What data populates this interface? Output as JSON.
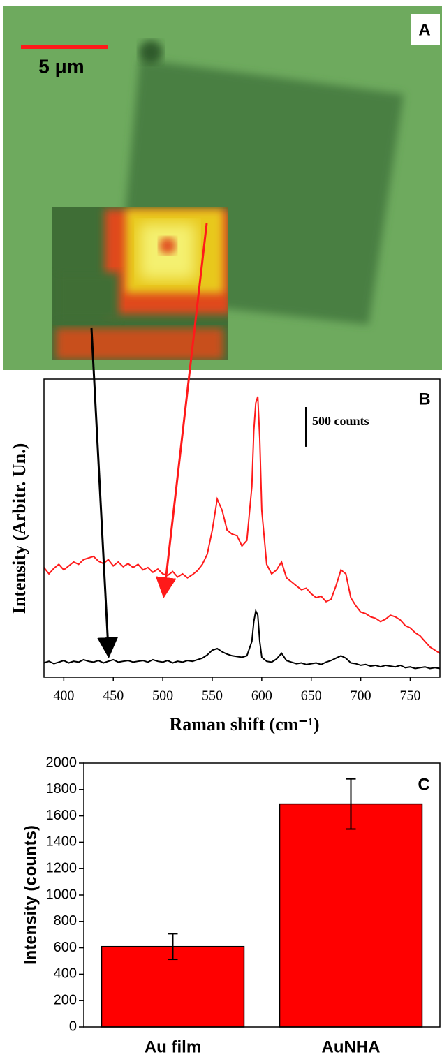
{
  "image_panel": {
    "label": "A",
    "scale_bar_label": "5 μm"
  },
  "chart_data": [
    {
      "type": "line",
      "panel_label": "B",
      "x_label": "Raman shift (cm⁻¹)",
      "y_label": "Intensity (Arbitr. Un.)",
      "x": [
        380,
        385,
        390,
        395,
        400,
        405,
        410,
        415,
        420,
        425,
        430,
        435,
        440,
        445,
        450,
        455,
        460,
        465,
        470,
        475,
        480,
        485,
        490,
        495,
        500,
        505,
        510,
        515,
        520,
        525,
        530,
        535,
        540,
        545,
        550,
        555,
        560,
        565,
        570,
        575,
        580,
        585,
        590,
        592,
        594,
        596,
        598,
        600,
        605,
        610,
        615,
        620,
        625,
        630,
        635,
        640,
        645,
        650,
        655,
        660,
        665,
        670,
        675,
        680,
        685,
        690,
        695,
        700,
        705,
        710,
        715,
        720,
        725,
        730,
        735,
        740,
        745,
        750,
        755,
        760,
        765,
        770,
        775,
        780
      ],
      "series": [
        {
          "color": "#ff1a1a",
          "values": [
            1380,
            1300,
            1370,
            1420,
            1350,
            1400,
            1450,
            1420,
            1480,
            1500,
            1520,
            1460,
            1430,
            1480,
            1400,
            1450,
            1390,
            1430,
            1380,
            1420,
            1350,
            1380,
            1320,
            1360,
            1300,
            1280,
            1330,
            1260,
            1300,
            1250,
            1290,
            1340,
            1420,
            1550,
            1850,
            2240,
            2100,
            1850,
            1800,
            1780,
            1650,
            1720,
            2400,
            3100,
            3450,
            3530,
            3000,
            2100,
            1420,
            1300,
            1350,
            1450,
            1250,
            1200,
            1150,
            1100,
            1120,
            1050,
            1000,
            1020,
            950,
            980,
            1150,
            1350,
            1300,
            1000,
            900,
            820,
            800,
            760,
            740,
            700,
            730,
            780,
            760,
            720,
            650,
            620,
            560,
            520,
            450,
            380,
            340,
            300
          ]
        },
        {
          "color": "#000000",
          "values": [
            180,
            200,
            170,
            190,
            210,
            180,
            200,
            190,
            220,
            200,
            190,
            210,
            180,
            200,
            220,
            190,
            200,
            210,
            190,
            200,
            210,
            190,
            220,
            200,
            190,
            210,
            180,
            200,
            190,
            210,
            200,
            220,
            240,
            280,
            340,
            360,
            320,
            290,
            270,
            260,
            250,
            270,
            450,
            700,
            834,
            780,
            450,
            250,
            200,
            190,
            230,
            300,
            210,
            190,
            170,
            180,
            160,
            170,
            180,
            160,
            190,
            210,
            240,
            270,
            240,
            180,
            170,
            150,
            160,
            140,
            150,
            130,
            150,
            140,
            130,
            150,
            120,
            130,
            110,
            120,
            130,
            110,
            120,
            110
          ]
        }
      ],
      "xlim": [
        380,
        780
      ],
      "xticks": [
        400,
        450,
        500,
        550,
        600,
        650,
        700,
        750
      ],
      "ylim": [
        0,
        3750
      ],
      "scale_bar": {
        "value": 500,
        "label": "500 counts"
      }
    },
    {
      "type": "bar",
      "panel_label": "C",
      "y_label": "Intensity (counts)",
      "categories": [
        "Au film",
        "AuNHA"
      ],
      "values": [
        610,
        1690
      ],
      "errors": [
        97,
        190
      ],
      "color": "#ff0000",
      "ylim": [
        0,
        2000
      ],
      "yticks": [
        0,
        200,
        400,
        600,
        800,
        1000,
        1200,
        1400,
        1600,
        1800,
        2000
      ]
    }
  ]
}
